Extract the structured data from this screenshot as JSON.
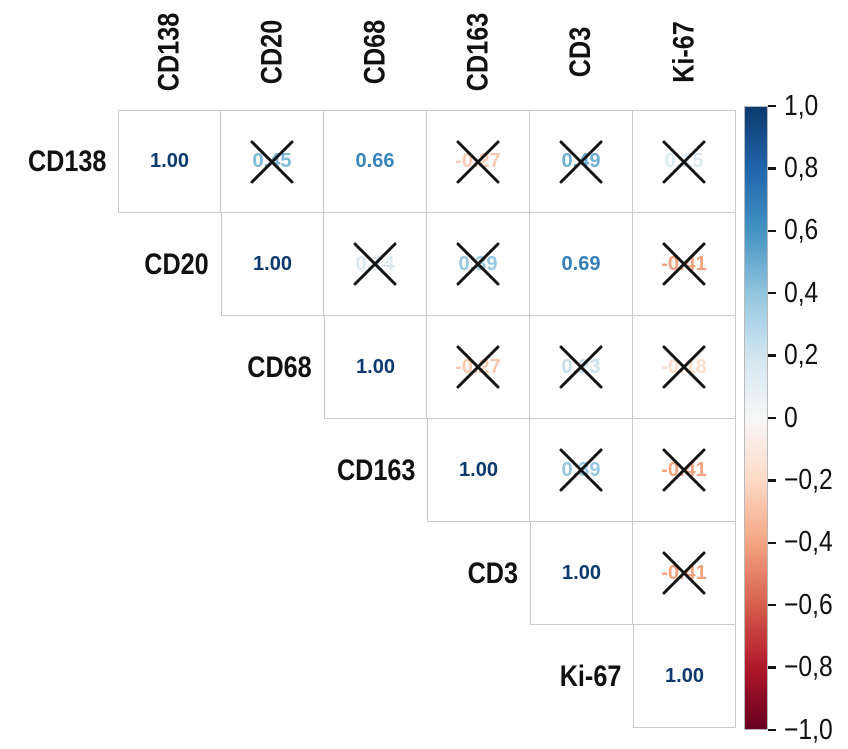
{
  "chart_data": {
    "type": "heatmap",
    "subtype": "correlation-matrix-upper-triangle",
    "title": "",
    "markers": [
      "CD138",
      "CD20",
      "CD68",
      "CD163",
      "CD3",
      "Ki-67"
    ],
    "value_format_decimals": 2,
    "value_range": [
      -1,
      1
    ],
    "rows": [
      {
        "label": "CD138",
        "cells": [
          {
            "col": 0,
            "value": 1.0,
            "crossed": false
          },
          {
            "col": 1,
            "value": 0.45,
            "crossed": true
          },
          {
            "col": 2,
            "value": 0.66,
            "crossed": false
          },
          {
            "col": 3,
            "value": -0.27,
            "crossed": true
          },
          {
            "col": 4,
            "value": 0.49,
            "crossed": true
          },
          {
            "col": 5,
            "value": 0.15,
            "crossed": true
          }
        ]
      },
      {
        "label": "CD20",
        "cells": [
          {
            "col": 1,
            "value": 1.0,
            "crossed": false
          },
          {
            "col": 2,
            "value": 0.14,
            "crossed": true
          },
          {
            "col": 3,
            "value": 0.39,
            "crossed": true
          },
          {
            "col": 4,
            "value": 0.69,
            "crossed": false
          },
          {
            "col": 5,
            "value": -0.41,
            "crossed": true
          }
        ]
      },
      {
        "label": "CD68",
        "cells": [
          {
            "col": 2,
            "value": 1.0,
            "crossed": false
          },
          {
            "col": 3,
            "value": -0.27,
            "crossed": true
          },
          {
            "col": 4,
            "value": 0.23,
            "crossed": true
          },
          {
            "col": 5,
            "value": -0.18,
            "crossed": true
          }
        ]
      },
      {
        "label": "CD163",
        "cells": [
          {
            "col": 3,
            "value": 1.0,
            "crossed": false
          },
          {
            "col": 4,
            "value": 0.39,
            "crossed": true
          },
          {
            "col": 5,
            "value": -0.41,
            "crossed": true
          }
        ]
      },
      {
        "label": "CD3",
        "cells": [
          {
            "col": 4,
            "value": 1.0,
            "crossed": false
          },
          {
            "col": 5,
            "value": -0.41,
            "crossed": true
          }
        ]
      },
      {
        "label": "Ki-67",
        "cells": [
          {
            "col": 5,
            "value": 1.0,
            "crossed": false
          }
        ]
      }
    ],
    "cross_meaning": "non-significant correlation",
    "colorbar": {
      "position": "right",
      "min": -1,
      "max": 1,
      "tick_labels": [
        "1,0",
        "0,8",
        "0,6",
        "0,4",
        "0,2",
        "0",
        "−0,2",
        "−0,4",
        "−0,6",
        "−0,8",
        "−1,0"
      ]
    },
    "colormap_stops": [
      {
        "v": -1.0,
        "color": "#67001f"
      },
      {
        "v": -0.8,
        "color": "#b2182b"
      },
      {
        "v": -0.6,
        "color": "#d6604d"
      },
      {
        "v": -0.4,
        "color": "#f4a582"
      },
      {
        "v": -0.2,
        "color": "#fddbc7"
      },
      {
        "v": 0.0,
        "color": "#f7f7f7"
      },
      {
        "v": 0.2,
        "color": "#d1e5f0"
      },
      {
        "v": 0.4,
        "color": "#92c5de"
      },
      {
        "v": 0.6,
        "color": "#4393c3"
      },
      {
        "v": 0.8,
        "color": "#2166ac"
      },
      {
        "v": 1.0,
        "color": "#0c3a6e"
      }
    ],
    "grid_border_color": "#c9c9c9",
    "cross_color": "#141414"
  }
}
